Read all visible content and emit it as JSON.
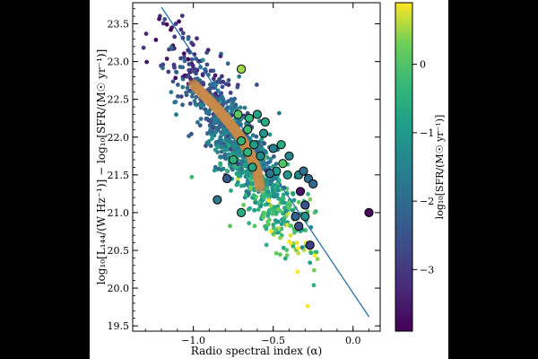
{
  "chart_data": {
    "type": "scatter",
    "xlabel": "Radio spectral index (α)",
    "ylabel": "log₁₀[L₁₄₄/(W Hz⁻¹)] − log₁₀[SFR/(M☉ yr⁻¹)]",
    "colorbar_label": "log₁₀[SFR/(M☉ yr⁻¹)]",
    "xlim": [
      -1.38,
      0.17
    ],
    "ylim": [
      19.43,
      23.78
    ],
    "clim": [
      -3.9,
      0.9
    ],
    "xticks": [
      -1.0,
      -0.5,
      0.0
    ],
    "xtick_labels": [
      "−1.0",
      "−0.5",
      "0.0"
    ],
    "yticks": [
      19.5,
      20.0,
      20.5,
      21.0,
      21.5,
      22.0,
      22.5,
      23.0,
      23.5
    ],
    "ytick_labels": [
      "19.5",
      "20.0",
      "20.5",
      "21.0",
      "21.5",
      "22.0",
      "22.5",
      "23.0",
      "23.5"
    ],
    "cticks": [
      -3,
      -2,
      -1,
      0
    ],
    "ctick_labels": [
      "−3",
      "−2",
      "−1",
      "0"
    ],
    "fit_line": {
      "x": [
        -1.2,
        0.1
      ],
      "y": [
        23.72,
        19.62
      ]
    },
    "trend_band": {
      "x": [
        -1.0,
        -0.93,
        -0.86,
        -0.8,
        -0.74,
        -0.69,
        -0.64,
        -0.6,
        -0.58
      ],
      "y": [
        22.7,
        22.55,
        22.4,
        22.25,
        22.1,
        21.95,
        21.75,
        21.55,
        21.3
      ]
    },
    "highlighted_points": [
      {
        "x": -0.72,
        "y": 22.3,
        "c": 0.1
      },
      {
        "x": -0.65,
        "y": 22.25,
        "c": -0.3
      },
      {
        "x": -0.6,
        "y": 22.3,
        "c": -0.8
      },
      {
        "x": -0.55,
        "y": 22.2,
        "c": -0.6
      },
      {
        "x": -0.7,
        "y": 21.95,
        "c": -0.4
      },
      {
        "x": -0.62,
        "y": 21.9,
        "c": -0.9
      },
      {
        "x": -0.58,
        "y": 21.75,
        "c": -1.3
      },
      {
        "x": -0.5,
        "y": 21.85,
        "c": -1.5
      },
      {
        "x": -0.66,
        "y": 22.1,
        "c": -0.2
      },
      {
        "x": -0.75,
        "y": 21.7,
        "c": -0.5
      },
      {
        "x": -0.48,
        "y": 21.55,
        "c": -0.9
      },
      {
        "x": -0.44,
        "y": 21.65,
        "c": 0.0
      },
      {
        "x": -0.41,
        "y": 21.5,
        "c": -1.0
      },
      {
        "x": -0.34,
        "y": 21.5,
        "c": -1.3
      },
      {
        "x": -0.31,
        "y": 21.55,
        "c": -1.9
      },
      {
        "x": -0.28,
        "y": 21.45,
        "c": -2.0
      },
      {
        "x": -0.52,
        "y": 21.52,
        "c": -1.8
      },
      {
        "x": -0.63,
        "y": 21.6,
        "c": -0.7
      },
      {
        "x": -0.7,
        "y": 22.9,
        "c": 0.5
      },
      {
        "x": -0.85,
        "y": 21.17,
        "c": -1.7
      },
      {
        "x": -0.79,
        "y": 21.45,
        "c": -2.4
      },
      {
        "x": -0.7,
        "y": 21.0,
        "c": -0.6
      },
      {
        "x": -0.33,
        "y": 21.28,
        "c": -3.6
      },
      {
        "x": -0.3,
        "y": 21.1,
        "c": -2.5
      },
      {
        "x": -0.36,
        "y": 20.95,
        "c": -2.2
      },
      {
        "x": -0.34,
        "y": 20.82,
        "c": -2.6
      },
      {
        "x": -0.3,
        "y": 20.95,
        "c": -1.2
      },
      {
        "x": -0.27,
        "y": 20.57,
        "c": -2.9
      },
      {
        "x": 0.1,
        "y": 21.0,
        "c": -3.8
      },
      {
        "x": -0.45,
        "y": 21.9,
        "c": -0.6
      },
      {
        "x": -0.56,
        "y": 22.05,
        "c": -1.1
      },
      {
        "x": -0.66,
        "y": 21.8,
        "c": -0.4
      },
      {
        "x": -0.4,
        "y": 21.75,
        "c": -1.4
      },
      {
        "x": -0.25,
        "y": 21.38,
        "c": -2.1
      }
    ],
    "cloud": {
      "count": 1100,
      "density_model": "points scattered about the trend: y ≈ 22.7 − 2.9·(α + 1.0) with spread ≈ 0.3 dex; α mostly between −1.3 and −0.3; colour increases toward lower-right (−3.6 at upper-left, +0.6 at lower-right)"
    }
  }
}
